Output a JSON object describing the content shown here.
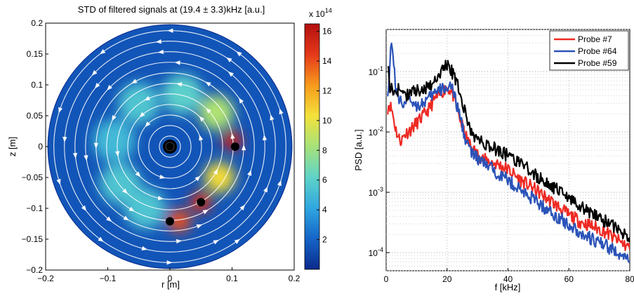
{
  "chart_data": [
    {
      "type": "heatmap",
      "title": "STD of filtered signals at (19.4 ± 3.3)kHz [a.u.]",
      "xlabel": "r [m]",
      "ylabel": "z [m]",
      "xlim": [
        -0.2,
        0.2
      ],
      "ylim": [
        -0.2,
        0.2
      ],
      "x_ticks": [
        "−0.2",
        "−0.1",
        "0",
        "0.1",
        "0.2"
      ],
      "y_ticks": [
        "0.2",
        "0.15",
        "0.1",
        "0.05",
        "0",
        "−0.05",
        "−0.1",
        "−0.15",
        "−0.2"
      ],
      "colorbar": {
        "exponent_label": "x 10",
        "exponent": "14",
        "range": [
          0,
          16.5
        ],
        "ticks": [
          "16",
          "14",
          "12",
          "10",
          "8",
          "6",
          "4",
          "2"
        ],
        "colors": [
          "#0b2a8c",
          "#1565c8",
          "#2fa6e0",
          "#5fd3c8",
          "#a6e27a",
          "#f3e23a",
          "#f79a1c",
          "#e5391a",
          "#b30f0f"
        ]
      },
      "probes": [
        {
          "r": 0.105,
          "z": 0.0
        },
        {
          "r": 0.05,
          "z": -0.09
        },
        {
          "r": 0.0,
          "z": -0.121
        }
      ],
      "axis_marker": {
        "r": 0.0,
        "z": 0.0
      },
      "hotspots": [
        {
          "r": 0.1,
          "z": 0.01,
          "value": 15.5
        },
        {
          "r": 0.08,
          "z": -0.05,
          "value": 10.5
        },
        {
          "r": 0.05,
          "z": -0.09,
          "value": 15
        },
        {
          "r": 0.015,
          "z": -0.12,
          "value": 14
        },
        {
          "r": 0.075,
          "z": 0.055,
          "value": 8.5
        },
        {
          "r": 0.02,
          "z": 0.085,
          "value": 6
        },
        {
          "r": -0.05,
          "z": 0.07,
          "value": 5.5
        },
        {
          "r": -0.09,
          "z": 0.01,
          "value": 5
        },
        {
          "r": -0.08,
          "z": -0.06,
          "value": 5.5
        },
        {
          "r": -0.04,
          "z": -0.1,
          "value": 5.5
        }
      ],
      "background_value": 1.5
    },
    {
      "type": "line",
      "xlabel": "f [kHz]",
      "ylabel": "PSD [a.u.]",
      "xlim": [
        0,
        80
      ],
      "ylim": [
        5e-05,
        0.5
      ],
      "log_y": true,
      "grid": true,
      "x_ticks": [
        "0",
        "20",
        "40",
        "60",
        "80"
      ],
      "y_ticks": [
        {
          "base": "10",
          "exp": "-1",
          "value": 0.1
        },
        {
          "base": "10",
          "exp": "-2",
          "value": 0.01
        },
        {
          "base": "10",
          "exp": "-3",
          "value": 0.001
        },
        {
          "base": "10",
          "exp": "-4",
          "value": 0.0001
        }
      ],
      "legend_position": "top-right",
      "series": [
        {
          "name": "Probe #7",
          "color": "#ee2a24",
          "x": [
            0.5,
            1,
            2,
            3,
            4,
            5,
            6,
            8,
            10,
            12,
            14,
            16,
            18,
            20,
            21,
            22,
            24,
            26,
            28,
            30,
            32,
            34,
            36,
            38,
            40,
            44,
            48,
            52,
            56,
            60,
            64,
            68,
            72,
            76,
            80
          ],
          "y": [
            0.025,
            0.03,
            0.022,
            0.012,
            0.008,
            0.0072,
            0.009,
            0.011,
            0.014,
            0.018,
            0.024,
            0.035,
            0.045,
            0.055,
            0.05,
            0.04,
            0.018,
            0.0085,
            0.0055,
            0.0042,
            0.0035,
            0.0032,
            0.003,
            0.0027,
            0.0024,
            0.0016,
            0.0012,
            0.00085,
            0.0006,
            0.00042,
            0.00032,
            0.00027,
            0.00022,
            0.00016,
            0.00012
          ]
        },
        {
          "name": "Probe #64",
          "color": "#2a52b8",
          "x": [
            0.5,
            1,
            1.5,
            2,
            3,
            4,
            6,
            8,
            10,
            12,
            14,
            16,
            18,
            20,
            21,
            22,
            24,
            26,
            28,
            30,
            32,
            34,
            36,
            38,
            40,
            44,
            48,
            52,
            56,
            60,
            64,
            68,
            72,
            76,
            80
          ],
          "y": [
            0.05,
            0.07,
            0.25,
            0.3,
            0.06,
            0.035,
            0.03,
            0.035,
            0.028,
            0.03,
            0.035,
            0.045,
            0.05,
            0.055,
            0.06,
            0.045,
            0.02,
            0.008,
            0.0045,
            0.0036,
            0.003,
            0.0026,
            0.0022,
            0.0019,
            0.0016,
            0.0011,
            0.0008,
            0.00055,
            0.0004,
            0.00029,
            0.00021,
            0.00016,
            0.00013,
            0.0001,
            7e-05
          ]
        },
        {
          "name": "Probe #59",
          "color": "#000000",
          "x": [
            0.5,
            1,
            2,
            3,
            4,
            6,
            8,
            10,
            12,
            14,
            16,
            18,
            19,
            20,
            21,
            22,
            24,
            26,
            28,
            30,
            32,
            34,
            36,
            38,
            40,
            44,
            48,
            52,
            56,
            60,
            64,
            68,
            72,
            76,
            80
          ],
          "y": [
            0.15,
            0.06,
            0.05,
            0.045,
            0.05,
            0.04,
            0.045,
            0.05,
            0.045,
            0.06,
            0.07,
            0.1,
            0.12,
            0.13,
            0.11,
            0.09,
            0.05,
            0.02,
            0.0095,
            0.0075,
            0.0065,
            0.0058,
            0.0052,
            0.0047,
            0.004,
            0.003,
            0.0021,
            0.0015,
            0.0011,
            0.0008,
            0.00058,
            0.00043,
            0.00033,
            0.00024,
            0.00018
          ]
        }
      ]
    }
  ]
}
